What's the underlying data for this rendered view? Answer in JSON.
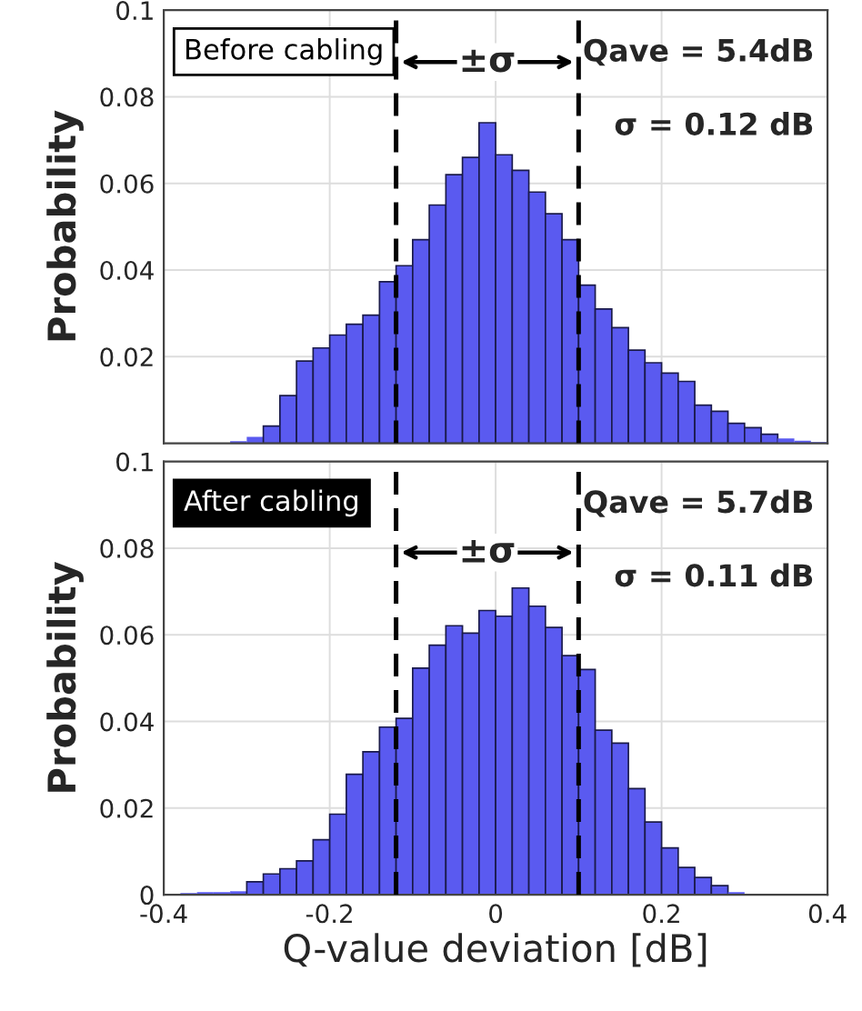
{
  "chart_data": [
    {
      "type": "histogram",
      "ylabel": "Probability",
      "color": "#5a5af0",
      "bins": [
        -0.4,
        -0.38,
        -0.36,
        -0.34,
        -0.32,
        -0.3,
        -0.28,
        -0.26,
        -0.24,
        -0.22,
        -0.2,
        -0.18,
        -0.16,
        -0.14,
        -0.12,
        -0.1,
        -0.08,
        -0.06,
        -0.04,
        -0.02,
        0,
        0.02,
        0.04,
        0.06,
        0.08,
        0.1,
        0.12,
        0.14,
        0.16,
        0.18,
        0.2,
        0.22,
        0.24,
        0.26,
        0.28,
        0.3,
        0.32,
        0.34,
        0.36,
        0.38,
        0.4
      ],
      "values": [
        0,
        0,
        0,
        0.0001,
        0.0005,
        0.0015,
        0.004,
        0.011,
        0.019,
        0.022,
        0.025,
        0.0275,
        0.0296,
        0.0373,
        0.041,
        0.047,
        0.055,
        0.062,
        0.066,
        0.074,
        0.0666,
        0.063,
        0.058,
        0.053,
        0.047,
        0.0365,
        0.031,
        0.0267,
        0.0215,
        0.0186,
        0.0162,
        0.0143,
        0.0088,
        0.0074,
        0.0046,
        0.0036,
        0.0021,
        0.0011,
        0.0006,
        0.0003
      ],
      "xlim": [
        -0.4,
        0.4
      ],
      "xticks": [
        -0.4,
        -0.2,
        0,
        0.2,
        0.4
      ],
      "ylim": [
        0,
        0.1
      ],
      "yticks": [
        {
          "value": 0,
          "label": null
        },
        0.02,
        0.04,
        0.06,
        0.08,
        0.1
      ],
      "tick_labels": "y",
      "grid": true,
      "ref_lines": [
        {
          "axis": "x",
          "value": -0.12,
          "line_style": "dashed",
          "color": "#000000"
        },
        {
          "axis": "x",
          "value": 0.1,
          "line_style": "dashed",
          "color": "#000000"
        }
      ],
      "annotations": [
        "Before cabling",
        "±σ",
        "Qave = 5.4dB",
        "σ = 0.12 dB"
      ]
    },
    {
      "type": "histogram",
      "ylabel": "Probability",
      "xlabel": "Q-value deviation [dB]",
      "color": "#5a5af0",
      "bins": [
        -0.4,
        -0.38,
        -0.36,
        -0.34,
        -0.32,
        -0.3,
        -0.28,
        -0.26,
        -0.24,
        -0.22,
        -0.2,
        -0.18,
        -0.16,
        -0.14,
        -0.12,
        -0.1,
        -0.08,
        -0.06,
        -0.04,
        -0.02,
        0,
        0.02,
        0.04,
        0.06,
        0.08,
        0.1,
        0.12,
        0.14,
        0.16,
        0.18,
        0.2,
        0.22,
        0.24,
        0.26,
        0.28,
        0.3,
        0.32,
        0.34,
        0.36,
        0.38,
        0.4
      ],
      "values": [
        0,
        0.0004,
        0.0006,
        0.0006,
        0.0008,
        0.003,
        0.0048,
        0.006,
        0.0078,
        0.0127,
        0.0186,
        0.0278,
        0.033,
        0.0387,
        0.0407,
        0.0523,
        0.0576,
        0.0621,
        0.0604,
        0.0656,
        0.0643,
        0.0708,
        0.0666,
        0.0617,
        0.0552,
        0.052,
        0.038,
        0.035,
        0.0245,
        0.0168,
        0.0108,
        0.0063,
        0.004,
        0.0021,
        0.0006,
        null,
        0.0001,
        0,
        0,
        0
      ],
      "xlim": [
        -0.4,
        0.4
      ],
      "xticks": [
        -0.4,
        -0.2,
        0,
        0.2,
        0.4
      ],
      "ylim": [
        0,
        0.1
      ],
      "yticks": [
        0,
        0.02,
        0.04,
        0.06,
        0.08,
        0.1
      ],
      "grid": true,
      "ref_lines": [
        {
          "axis": "x",
          "value": -0.12,
          "line_style": "dashed",
          "color": "#000000"
        },
        {
          "axis": "x",
          "value": 0.1,
          "line_style": "dashed",
          "color": "#000000"
        }
      ],
      "annotations": [
        "After cabling",
        "±σ",
        "Qave = 5.7dB",
        "σ = 0.11 dB"
      ]
    }
  ]
}
